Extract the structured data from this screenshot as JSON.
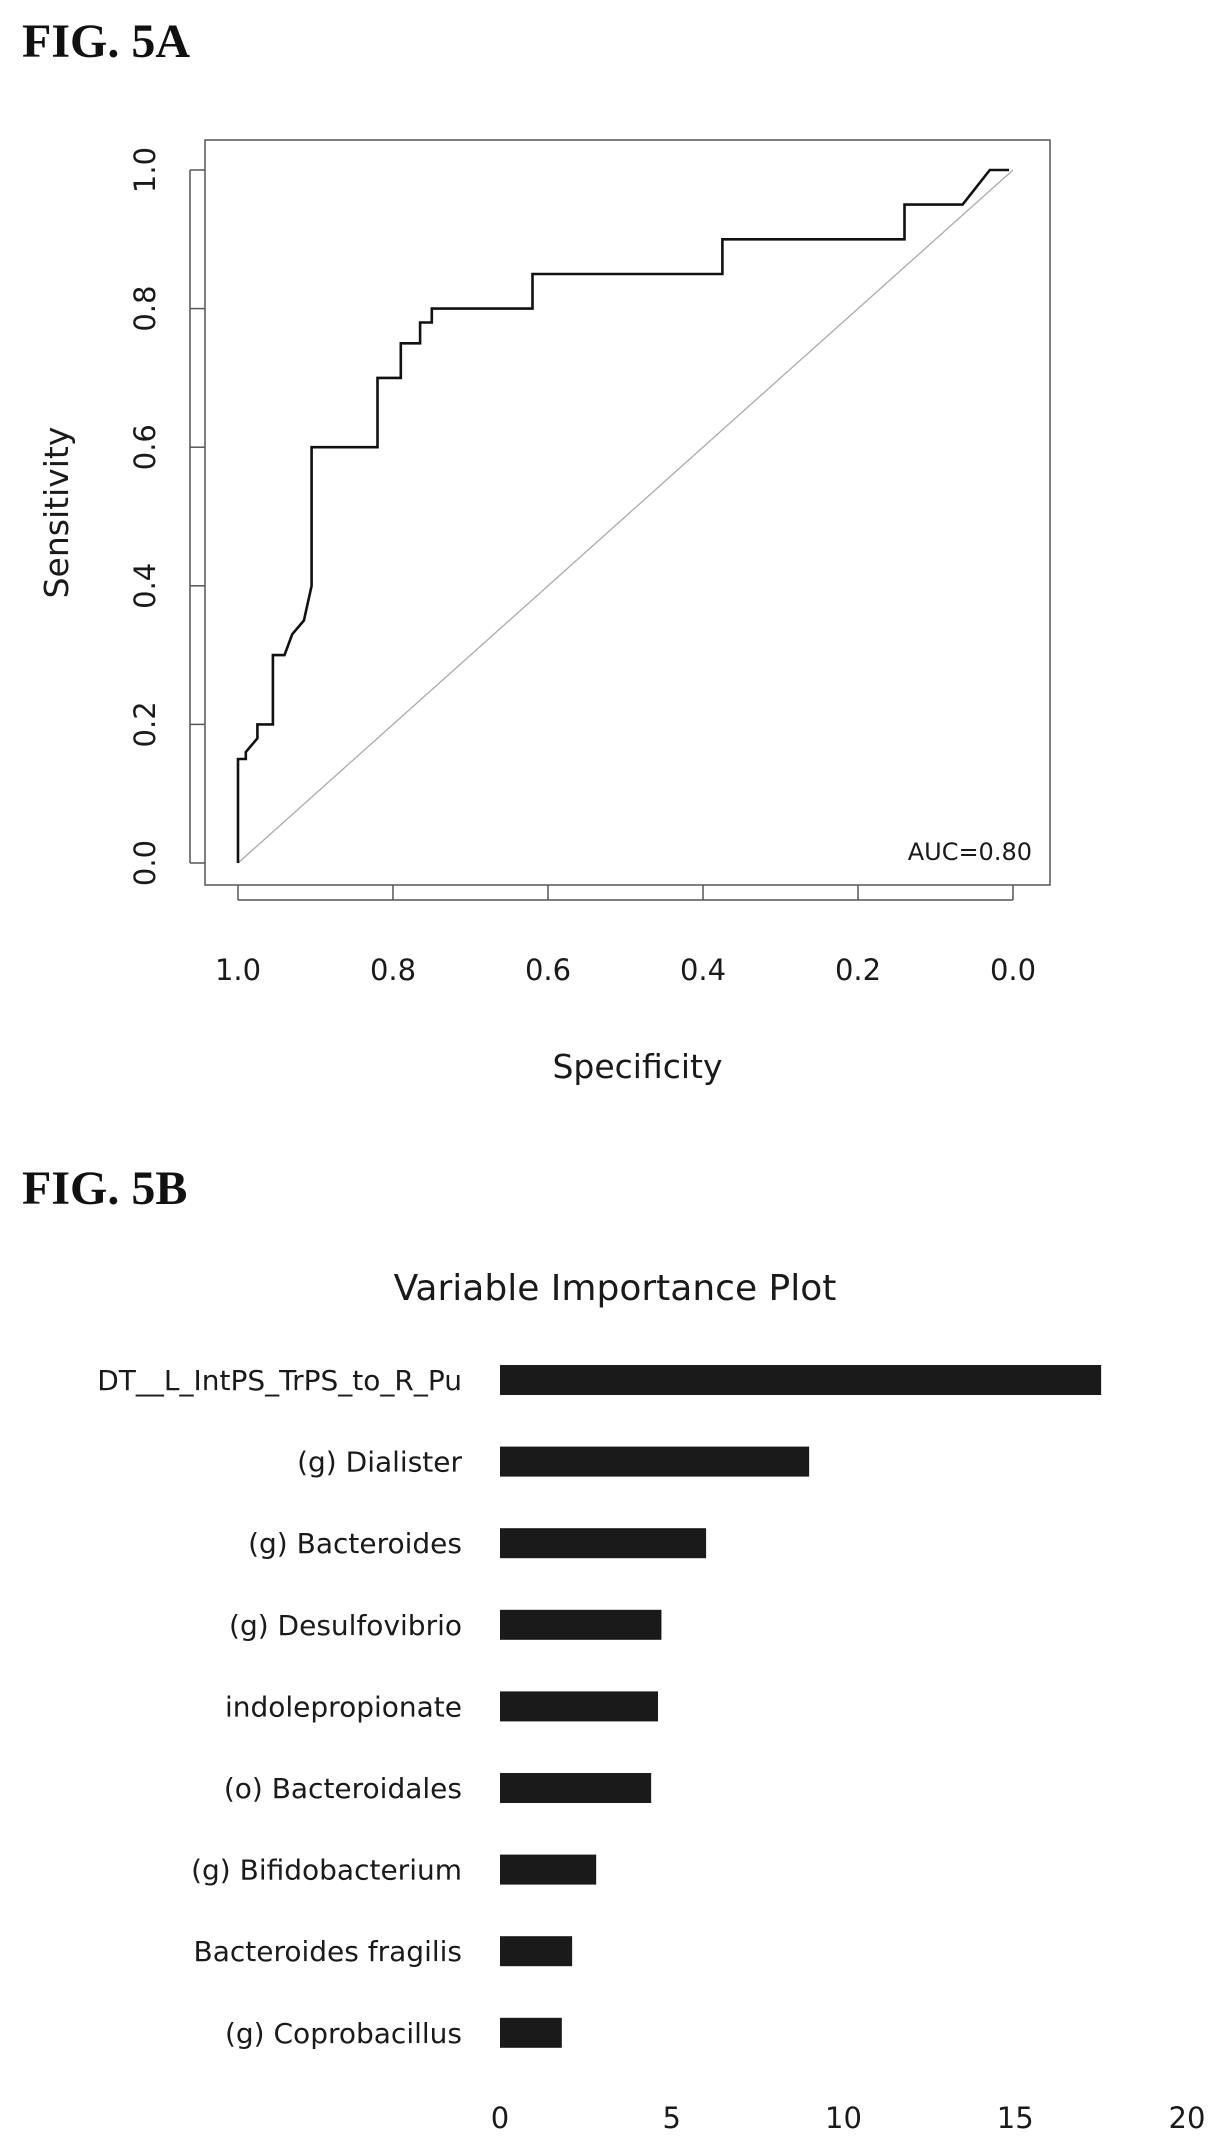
{
  "figure_a": {
    "label": "FIG. 5A"
  },
  "figure_b": {
    "label": "FIG. 5B"
  },
  "colors": {
    "line": "#111111",
    "diagonal": "#aaaaaa",
    "bar": "#1a1a1a",
    "frame": "#555555"
  },
  "chart_data": [
    {
      "type": "line",
      "title": "",
      "xlabel": "Specificity",
      "ylabel": "Sensitivity",
      "x_reversed": true,
      "xlim": [
        1.0,
        0.0
      ],
      "ylim": [
        0.0,
        1.0
      ],
      "xticks": [
        "1.0",
        "0.8",
        "0.6",
        "0.4",
        "0.2",
        "0.0"
      ],
      "yticks": [
        "0.0",
        "0.2",
        "0.4",
        "0.6",
        "0.8",
        "1.0"
      ],
      "annotation": "AUC=0.80",
      "reference_line": "diagonal",
      "series": [
        {
          "x": [
            1.0,
            1.0,
            0.99,
            0.99,
            0.975,
            0.975,
            0.955,
            0.955,
            0.94,
            0.93,
            0.915,
            0.915,
            0.905,
            0.905,
            0.82,
            0.82,
            0.79,
            0.79,
            0.765,
            0.765,
            0.75,
            0.75,
            0.62,
            0.62,
            0.375,
            0.375,
            0.14,
            0.14,
            0.065,
            0.03,
            0.005
          ],
          "y": [
            0.0,
            0.15,
            0.15,
            0.16,
            0.18,
            0.2,
            0.2,
            0.3,
            0.3,
            0.33,
            0.35,
            0.35,
            0.4,
            0.6,
            0.6,
            0.7,
            0.7,
            0.75,
            0.75,
            0.78,
            0.78,
            0.8,
            0.8,
            0.85,
            0.85,
            0.9,
            0.9,
            0.95,
            0.95,
            1.0,
            1.0
          ]
        }
      ]
    },
    {
      "type": "bar",
      "orientation": "horizontal",
      "title": "Variable Importance Plot",
      "xlabel": "",
      "ylabel": "",
      "xlim": [
        0,
        20
      ],
      "xticks": [
        "0",
        "5",
        "10",
        "15",
        "20"
      ],
      "categories": [
        "DT__L_IntPS_TrPS_to_R_Pu",
        "(g) Dialister",
        "(g) Bacteroides",
        "(g) Desulfovibrio",
        "indolepropionate",
        "(o) Bacteroidales",
        "(g) Bifidobacterium",
        "Bacteroides fragilis",
        "(g) Coprobacillus"
      ],
      "values": [
        17.5,
        9.0,
        6.0,
        4.7,
        4.6,
        4.4,
        2.8,
        2.1,
        1.8
      ]
    }
  ]
}
